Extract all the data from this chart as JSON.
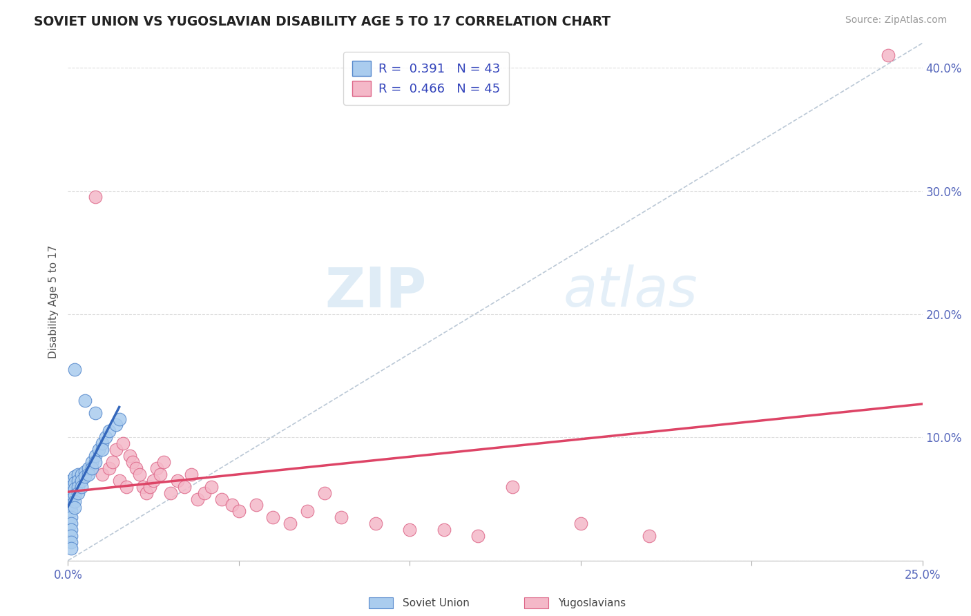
{
  "title": "SOVIET UNION VS YUGOSLAVIAN DISABILITY AGE 5 TO 17 CORRELATION CHART",
  "source": "Source: ZipAtlas.com",
  "ylabel": "Disability Age 5 to 17",
  "xlim": [
    0.0,
    0.25
  ],
  "ylim": [
    0.0,
    0.42
  ],
  "x_ticks": [
    0.0,
    0.05,
    0.1,
    0.15,
    0.2,
    0.25
  ],
  "x_tick_labels": [
    "0.0%",
    "",
    "",
    "",
    "",
    "25.0%"
  ],
  "y_ticks": [
    0.0,
    0.1,
    0.2,
    0.3,
    0.4
  ],
  "y_tick_labels": [
    "",
    "10.0%",
    "20.0%",
    "30.0%",
    "40.0%"
  ],
  "legend_R1": "R =  0.391",
  "legend_N1": "N = 43",
  "legend_R2": "R =  0.466",
  "legend_N2": "N = 45",
  "watermark_zip": "ZIP",
  "watermark_atlas": "atlas",
  "soviet_color": "#aaccee",
  "yugoslav_color": "#f4b8c8",
  "soviet_edge_color": "#5588cc",
  "yugoslav_edge_color": "#dd6688",
  "soviet_line_color": "#3366bb",
  "yugoslav_line_color": "#dd4466",
  "ref_line_color": "#aabbcc",
  "grid_color": "#dddddd",
  "title_color": "#222222",
  "source_color": "#999999",
  "tick_color": "#5566bb",
  "ylabel_color": "#555555",
  "legend_text_color": "#3344bb",
  "bottom_label_color": "#444444",
  "soviet_x": [
    0.001,
    0.001,
    0.001,
    0.001,
    0.001,
    0.001,
    0.001,
    0.001,
    0.002,
    0.002,
    0.002,
    0.002,
    0.002,
    0.002,
    0.003,
    0.003,
    0.003,
    0.003,
    0.004,
    0.004,
    0.004,
    0.005,
    0.005,
    0.006,
    0.006,
    0.007,
    0.007,
    0.008,
    0.008,
    0.009,
    0.01,
    0.01,
    0.011,
    0.012,
    0.014,
    0.015,
    0.002,
    0.005,
    0.008,
    0.001,
    0.001,
    0.001,
    0.001
  ],
  "soviet_y": [
    0.065,
    0.06,
    0.055,
    0.05,
    0.045,
    0.04,
    0.035,
    0.03,
    0.068,
    0.063,
    0.058,
    0.053,
    0.048,
    0.043,
    0.07,
    0.065,
    0.06,
    0.055,
    0.07,
    0.065,
    0.06,
    0.072,
    0.068,
    0.075,
    0.07,
    0.08,
    0.075,
    0.085,
    0.08,
    0.09,
    0.095,
    0.09,
    0.1,
    0.105,
    0.11,
    0.115,
    0.155,
    0.13,
    0.12,
    0.025,
    0.02,
    0.015,
    0.01
  ],
  "yugoslav_x": [
    0.005,
    0.007,
    0.008,
    0.01,
    0.012,
    0.013,
    0.014,
    0.015,
    0.016,
    0.017,
    0.018,
    0.019,
    0.02,
    0.021,
    0.022,
    0.023,
    0.024,
    0.025,
    0.026,
    0.027,
    0.028,
    0.03,
    0.032,
    0.034,
    0.036,
    0.038,
    0.04,
    0.042,
    0.045,
    0.048,
    0.05,
    0.055,
    0.06,
    0.065,
    0.07,
    0.075,
    0.08,
    0.09,
    0.1,
    0.11,
    0.12,
    0.13,
    0.15,
    0.17,
    0.24
  ],
  "yugoslav_y": [
    0.07,
    0.075,
    0.295,
    0.07,
    0.075,
    0.08,
    0.09,
    0.065,
    0.095,
    0.06,
    0.085,
    0.08,
    0.075,
    0.07,
    0.06,
    0.055,
    0.06,
    0.065,
    0.075,
    0.07,
    0.08,
    0.055,
    0.065,
    0.06,
    0.07,
    0.05,
    0.055,
    0.06,
    0.05,
    0.045,
    0.04,
    0.045,
    0.035,
    0.03,
    0.04,
    0.055,
    0.035,
    0.03,
    0.025,
    0.025,
    0.02,
    0.06,
    0.03,
    0.02,
    0.41
  ]
}
